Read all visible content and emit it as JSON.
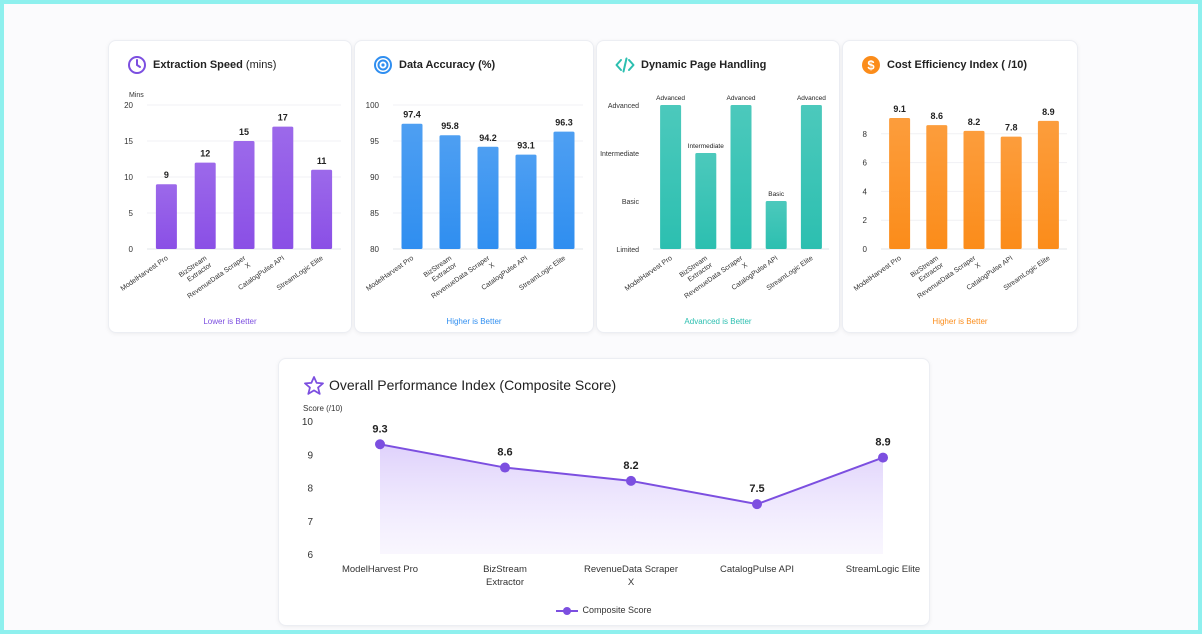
{
  "colors": {
    "purple": "#8a4fe6",
    "blue": "#2f8ef0",
    "teal": "#2cbfb0",
    "orange": "#fb8c1a",
    "line": "#7c4fe0"
  },
  "chart_data": [
    {
      "type": "bar",
      "title": "Extraction Speed",
      "title_unit": "(mins)",
      "icon": "clock-icon",
      "ylabel": "Mins",
      "ylim": [
        0,
        20
      ],
      "yticks": [
        "0",
        "5",
        "10",
        "15",
        "20"
      ],
      "categories": [
        "ModelHarvest Pro",
        "BizStream Extractor",
        "RevenueData Scraper X",
        "CatalogPulse API",
        "StreamLogic Elite"
      ],
      "values": [
        9,
        12,
        15,
        17,
        11
      ],
      "value_labels": [
        "9",
        "12",
        "15",
        "17",
        "11"
      ],
      "footnote": "Lower is Better",
      "color": "#8a4fe6"
    },
    {
      "type": "bar",
      "title": "Data Accuracy (%)",
      "title_unit": "",
      "icon": "target-icon",
      "ylabel": "",
      "ylim": [
        80,
        100
      ],
      "yticks": [
        "80",
        "85",
        "90",
        "95",
        "100"
      ],
      "categories": [
        "ModelHarvest Pro",
        "BizStream Extractor",
        "RevenueData Scraper X",
        "CatalogPulse API",
        "StreamLogic Elite"
      ],
      "values": [
        97.4,
        95.8,
        94.2,
        93.1,
        96.3
      ],
      "value_labels": [
        "97.4",
        "95.8",
        "94.2",
        "93.1",
        "96.3"
      ],
      "footnote": "Higher is Better",
      "color": "#2f8ef0"
    },
    {
      "type": "bar",
      "title": "Dynamic Page Handling",
      "title_unit": "",
      "icon": "code-icon",
      "ylabel": "",
      "ylim": [
        0,
        3
      ],
      "yticks": [
        "Limited",
        "Basic",
        "Intermediate",
        "Advanced"
      ],
      "categories": [
        "ModelHarvest Pro",
        "BizStream Extractor",
        "RevenueData Scraper X",
        "CatalogPulse API",
        "StreamLogic Elite"
      ],
      "values": [
        3,
        2,
        3,
        1,
        3
      ],
      "value_labels": [
        "Advanced",
        "Intermediate",
        "Advanced",
        "Basic",
        "Advanced"
      ],
      "footnote": "Advanced is Better",
      "color": "#2cbfb0"
    },
    {
      "type": "bar",
      "title": "Cost Efficiency Index ( /10)",
      "title_unit": "",
      "icon": "dollar-icon",
      "ylabel": "",
      "ylim": [
        0,
        10
      ],
      "yticks": [
        "0",
        "2",
        "4",
        "6",
        "8"
      ],
      "categories": [
        "ModelHarvest Pro",
        "BizStream Extractor",
        "RevenueData Scraper X",
        "CatalogPulse API",
        "StreamLogic Elite"
      ],
      "values": [
        9.1,
        8.6,
        8.2,
        7.8,
        8.9
      ],
      "value_labels": [
        "9.1",
        "8.6",
        "8.2",
        "7.8",
        "8.9"
      ],
      "footnote": "Higher is Better",
      "color": "#fb8c1a"
    },
    {
      "type": "area",
      "title": "Overall Performance Index (Composite Score)",
      "icon": "star-icon",
      "ylabel": "Score (/10)",
      "ylim": [
        6,
        10
      ],
      "yticks": [
        "6",
        "7",
        "8",
        "9",
        "10"
      ],
      "categories": [
        "ModelHarvest Pro",
        "BizStream Extractor",
        "RevenueData Scraper X",
        "CatalogPulse API",
        "StreamLogic Elite"
      ],
      "series": [
        {
          "name": "Composite Score",
          "values": [
            9.3,
            8.6,
            8.2,
            7.5,
            8.9
          ],
          "value_labels": [
            "9.3",
            "8.6",
            "8.2",
            "7.5",
            "8.9"
          ]
        }
      ],
      "legend_position": "bottom",
      "color": "#7c4fe0"
    }
  ]
}
